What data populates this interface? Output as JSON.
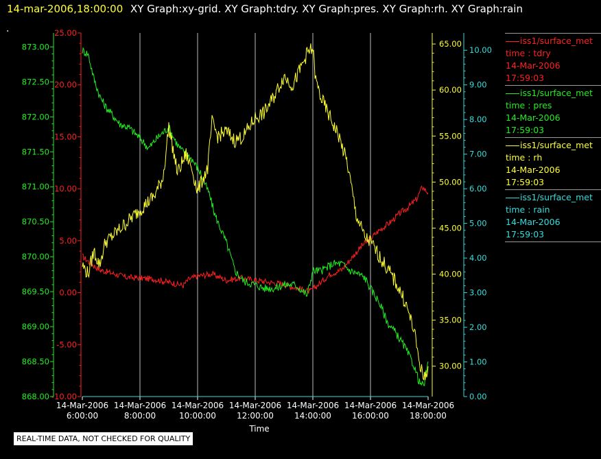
{
  "header": {
    "date": "14-mar-2006,18:00:00",
    "graphs": "XY Graph:xy-grid.  XY Graph:tdry.  XY Graph:pres.  XY Graph:rh.  XY Graph:rain",
    "dot": "."
  },
  "footer": {
    "note": "REAL-TIME DATA, NOT CHECKED FOR QUALITY"
  },
  "colors": {
    "tdry": "#ff2020",
    "pres": "#22ee22",
    "rh": "#ffff33",
    "rain": "#33dddd",
    "grid": "#bdbdbd"
  },
  "legend": [
    {
      "source": "iss1/surface_met",
      "var": "time : tdry",
      "date": "14-Mar-2006",
      "time": "17:59:03",
      "color": "#ff2020"
    },
    {
      "source": "iss1/surface_met",
      "var": "time : pres",
      "date": "14-Mar-2006",
      "time": "17:59:03",
      "color": "#22ee22"
    },
    {
      "source": "iss1/surface_met",
      "var": "time : rh",
      "date": "14-Mar-2006",
      "time": "17:59:03",
      "color": "#ffff33"
    },
    {
      "source": "iss1/surface_met",
      "var": "time : rain",
      "date": "14-Mar-2006",
      "time": "17:59:03",
      "color": "#33dddd"
    }
  ],
  "chart_data": {
    "type": "line",
    "xlabel": "Time",
    "x_ticks": [
      {
        "date": "14-Mar-2006",
        "time": "6:00:00"
      },
      {
        "date": "14-Mar-2006",
        "time": "8:00:00"
      },
      {
        "date": "14-Mar-2006",
        "time": "10:00:00"
      },
      {
        "date": "14-Mar-2006",
        "time": "12:00:00"
      },
      {
        "date": "14-Mar-2006",
        "time": "14:00:00"
      },
      {
        "date": "14-Mar-2006",
        "time": "16:00:00"
      },
      {
        "date": "14-Mar-2006",
        "time": "18:00:00"
      }
    ],
    "x_unit": "hours",
    "xlim": [
      6,
      18
    ],
    "grid": true,
    "axes": {
      "tdry": {
        "range": [
          -10,
          25
        ],
        "ticks": [
          "-10.00",
          "-5.00",
          "0.00",
          "5.00",
          "10.00",
          "15.00",
          "20.00",
          "25.00"
        ]
      },
      "pres": {
        "range": [
          868,
          873.2
        ],
        "ticks": [
          "868.00",
          "868.50",
          "869.00",
          "869.50",
          "870.00",
          "870.50",
          "871.00",
          "871.50",
          "872.00",
          "872.50",
          "873.00"
        ]
      },
      "rh": {
        "range": [
          26.7,
          66.2
        ],
        "ticks": [
          "30.00",
          "35.00",
          "40.00",
          "45.00",
          "50.00",
          "55.00",
          "60.00",
          "65.00"
        ]
      },
      "rain": {
        "range": [
          0,
          10.5
        ],
        "ticks": [
          "0.00",
          "1.00",
          "2.00",
          "3.00",
          "4.00",
          "5.00",
          "6.00",
          "7.00",
          "8.00",
          "9.00",
          "10.00"
        ]
      }
    },
    "series": [
      {
        "name": "tdry",
        "x": [
          6.0,
          6.3,
          6.6,
          7.0,
          7.5,
          8.0,
          8.5,
          9.0,
          9.5,
          9.7,
          10.0,
          10.5,
          11.0,
          11.5,
          12.0,
          12.5,
          13.0,
          13.5,
          13.9,
          14.2,
          14.6,
          15.0,
          15.3,
          15.7,
          16.0,
          16.3,
          16.7,
          17.0,
          17.3,
          17.6,
          17.8,
          18.0
        ],
        "values": [
          3.5,
          2.8,
          2.2,
          1.9,
          1.5,
          1.4,
          1.3,
          1.0,
          0.7,
          1.3,
          1.6,
          1.8,
          1.2,
          1.4,
          1.2,
          1.0,
          0.8,
          0.4,
          0.1,
          0.8,
          1.8,
          2.2,
          3.2,
          4.5,
          5.2,
          6.0,
          6.8,
          7.6,
          8.2,
          9.0,
          10.2,
          9.6
        ]
      },
      {
        "name": "pres",
        "x": [
          6.0,
          6.2,
          6.4,
          6.6,
          6.8,
          7.0,
          7.3,
          7.6,
          8.0,
          8.3,
          8.6,
          9.0,
          9.3,
          9.5,
          9.8,
          10.1,
          10.4,
          10.6,
          11.0,
          11.3,
          11.6,
          12.0,
          12.3,
          12.7,
          13.0,
          13.4,
          13.8,
          14.0,
          14.3,
          14.7,
          15.0,
          15.3,
          15.6,
          15.8,
          16.0,
          16.3,
          16.6,
          16.9,
          17.2,
          17.5,
          17.7,
          17.85,
          18.0
        ],
        "values": [
          872.95,
          872.9,
          872.55,
          872.3,
          872.15,
          872.05,
          871.9,
          871.85,
          871.7,
          871.55,
          871.7,
          871.85,
          871.6,
          871.5,
          871.4,
          871.2,
          870.9,
          870.6,
          870.2,
          869.8,
          869.65,
          869.6,
          869.55,
          869.55,
          869.6,
          869.6,
          869.45,
          869.8,
          869.8,
          869.9,
          869.9,
          869.8,
          869.75,
          869.7,
          869.55,
          869.35,
          869.05,
          868.9,
          868.7,
          868.45,
          868.2,
          868.15,
          868.5
        ]
      },
      {
        "name": "rh",
        "x": [
          6.0,
          6.2,
          6.4,
          6.6,
          6.8,
          7.0,
          7.5,
          8.0,
          8.5,
          8.8,
          9.0,
          9.3,
          9.6,
          9.8,
          10.0,
          10.2,
          10.35,
          10.5,
          10.7,
          11.0,
          11.3,
          11.6,
          11.8,
          12.0,
          12.3,
          12.6,
          13.0,
          13.3,
          13.6,
          13.8,
          14.0,
          14.1,
          14.3,
          14.6,
          14.9,
          15.2,
          15.5,
          15.8,
          16.0,
          16.3,
          16.6,
          16.9,
          17.2,
          17.5,
          17.7,
          17.85,
          18.0
        ],
        "values": [
          41.0,
          40.0,
          42.5,
          41.0,
          43.5,
          44.0,
          45.5,
          47.0,
          48.5,
          50.5,
          56.0,
          51.0,
          53.0,
          51.5,
          49.0,
          50.5,
          51.5,
          56.5,
          55.0,
          55.5,
          54.5,
          55.0,
          56.0,
          57.0,
          57.5,
          59.0,
          61.5,
          60.5,
          62.5,
          64.0,
          64.5,
          61.0,
          59.0,
          57.0,
          55.0,
          52.0,
          46.5,
          44.0,
          43.5,
          42.0,
          40.5,
          39.0,
          37.0,
          34.0,
          30.5,
          28.5,
          30.0
        ]
      },
      {
        "name": "rain",
        "x": [
          6.0,
          18.0
        ],
        "values": [
          0.0,
          0.0
        ]
      }
    ]
  }
}
